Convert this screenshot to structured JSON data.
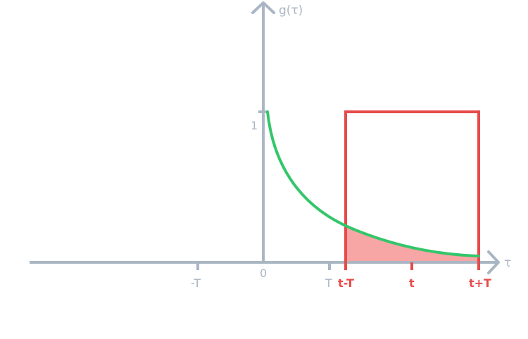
{
  "axes": {
    "y_label": "g(τ)",
    "x_label": "τ"
  },
  "ticks": {
    "y_one": "1",
    "neg_T": "-T",
    "zero": "0",
    "T": "T",
    "t_minus_T": "t-T",
    "t": "t",
    "t_plus_T": "t+T"
  },
  "colors": {
    "axis": "#aab6c3",
    "curve": "#33c66a",
    "window": "#e84a4a",
    "fill": "#f7a5a5"
  }
}
